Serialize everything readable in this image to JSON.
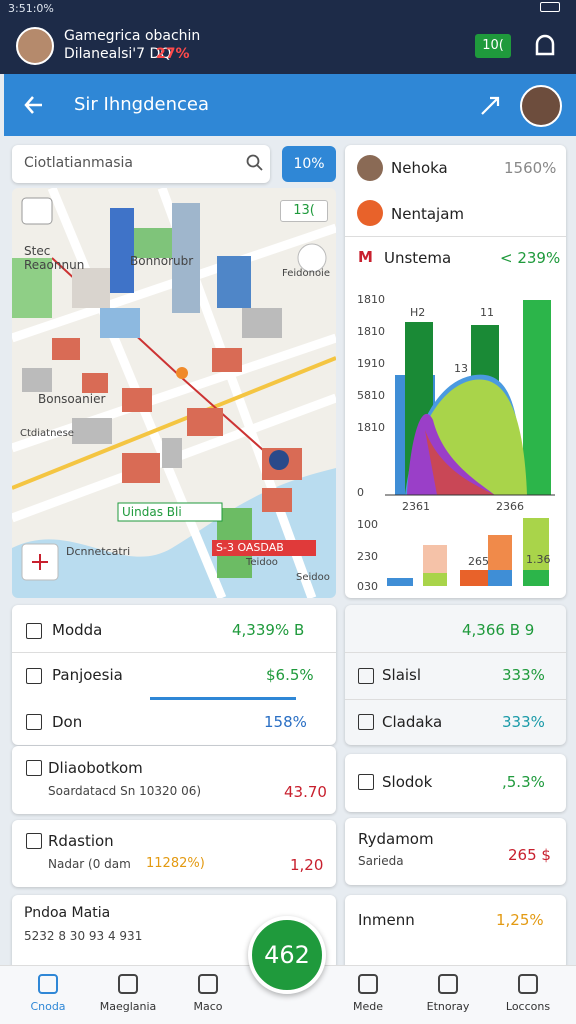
{
  "status": {
    "time": "3:51:0%"
  },
  "header": {
    "title": "Gamegrica obachin",
    "subtitle": "Dilanealsi'7 DQ",
    "badge": "27%",
    "button": "10("
  },
  "nav": {
    "title": "Sir Ihngdencea"
  },
  "search": {
    "placeholder": "Ciotlatianmasia",
    "button": "10%"
  },
  "map": {
    "badge": "13(",
    "labels": [
      "Stec Reaonnun",
      "Bonnorubr",
      "Feidonoie",
      "Bonsoanier",
      "Ctdiatnese",
      "Uindas Bli",
      "Dcnnetcatri",
      "S-3 OASDAB",
      "Teidoo",
      "Seidoo"
    ]
  },
  "side": {
    "rows": [
      {
        "label": "Nehoka",
        "value": "1560%"
      },
      {
        "label": "Nentajam"
      }
    ],
    "chart": {
      "title": "Unstema",
      "value": "< 239%",
      "yaxis": [
        "1810",
        "1810",
        "1910",
        "5810",
        "1810",
        "0",
        "100",
        "230",
        "030"
      ],
      "labels": [
        "H2",
        "11",
        "13",
        "2361",
        "2366",
        "265",
        "1.36"
      ]
    }
  },
  "left_list": [
    {
      "label": "Modda",
      "value": "4,339% B"
    },
    {
      "label": "Panjoesia",
      "value": "$6.5%"
    },
    {
      "label": "Don",
      "value": "158%"
    },
    {
      "label": "Dliaobotkom",
      "sub": "Soardatacd Sn 10320 06)",
      "value": "43.70"
    },
    {
      "label": "Rdastion",
      "sub": "Nadar (0 dam",
      "sub2": "11282%)",
      "value": "1,20"
    },
    {
      "label": "Pndoa Matia",
      "sub": "5232 8 30 93 4 931"
    }
  ],
  "right_list": [
    {
      "value": "4,366 B 9"
    },
    {
      "label": "Slaisl",
      "value": "333%"
    },
    {
      "label": "Cladaka",
      "value": "333%"
    },
    {
      "label": "Slodok",
      "value": ",5.3%"
    },
    {
      "label": "Rydamom",
      "sub": "Sarieda",
      "value": "265 $"
    },
    {
      "label": "Inmenn",
      "value": "1,25%"
    }
  ],
  "fab": "462",
  "tabs": [
    "Cnoda",
    "Maeglania",
    "Maco",
    "Mede",
    "Etnoray",
    "Loccons"
  ]
}
